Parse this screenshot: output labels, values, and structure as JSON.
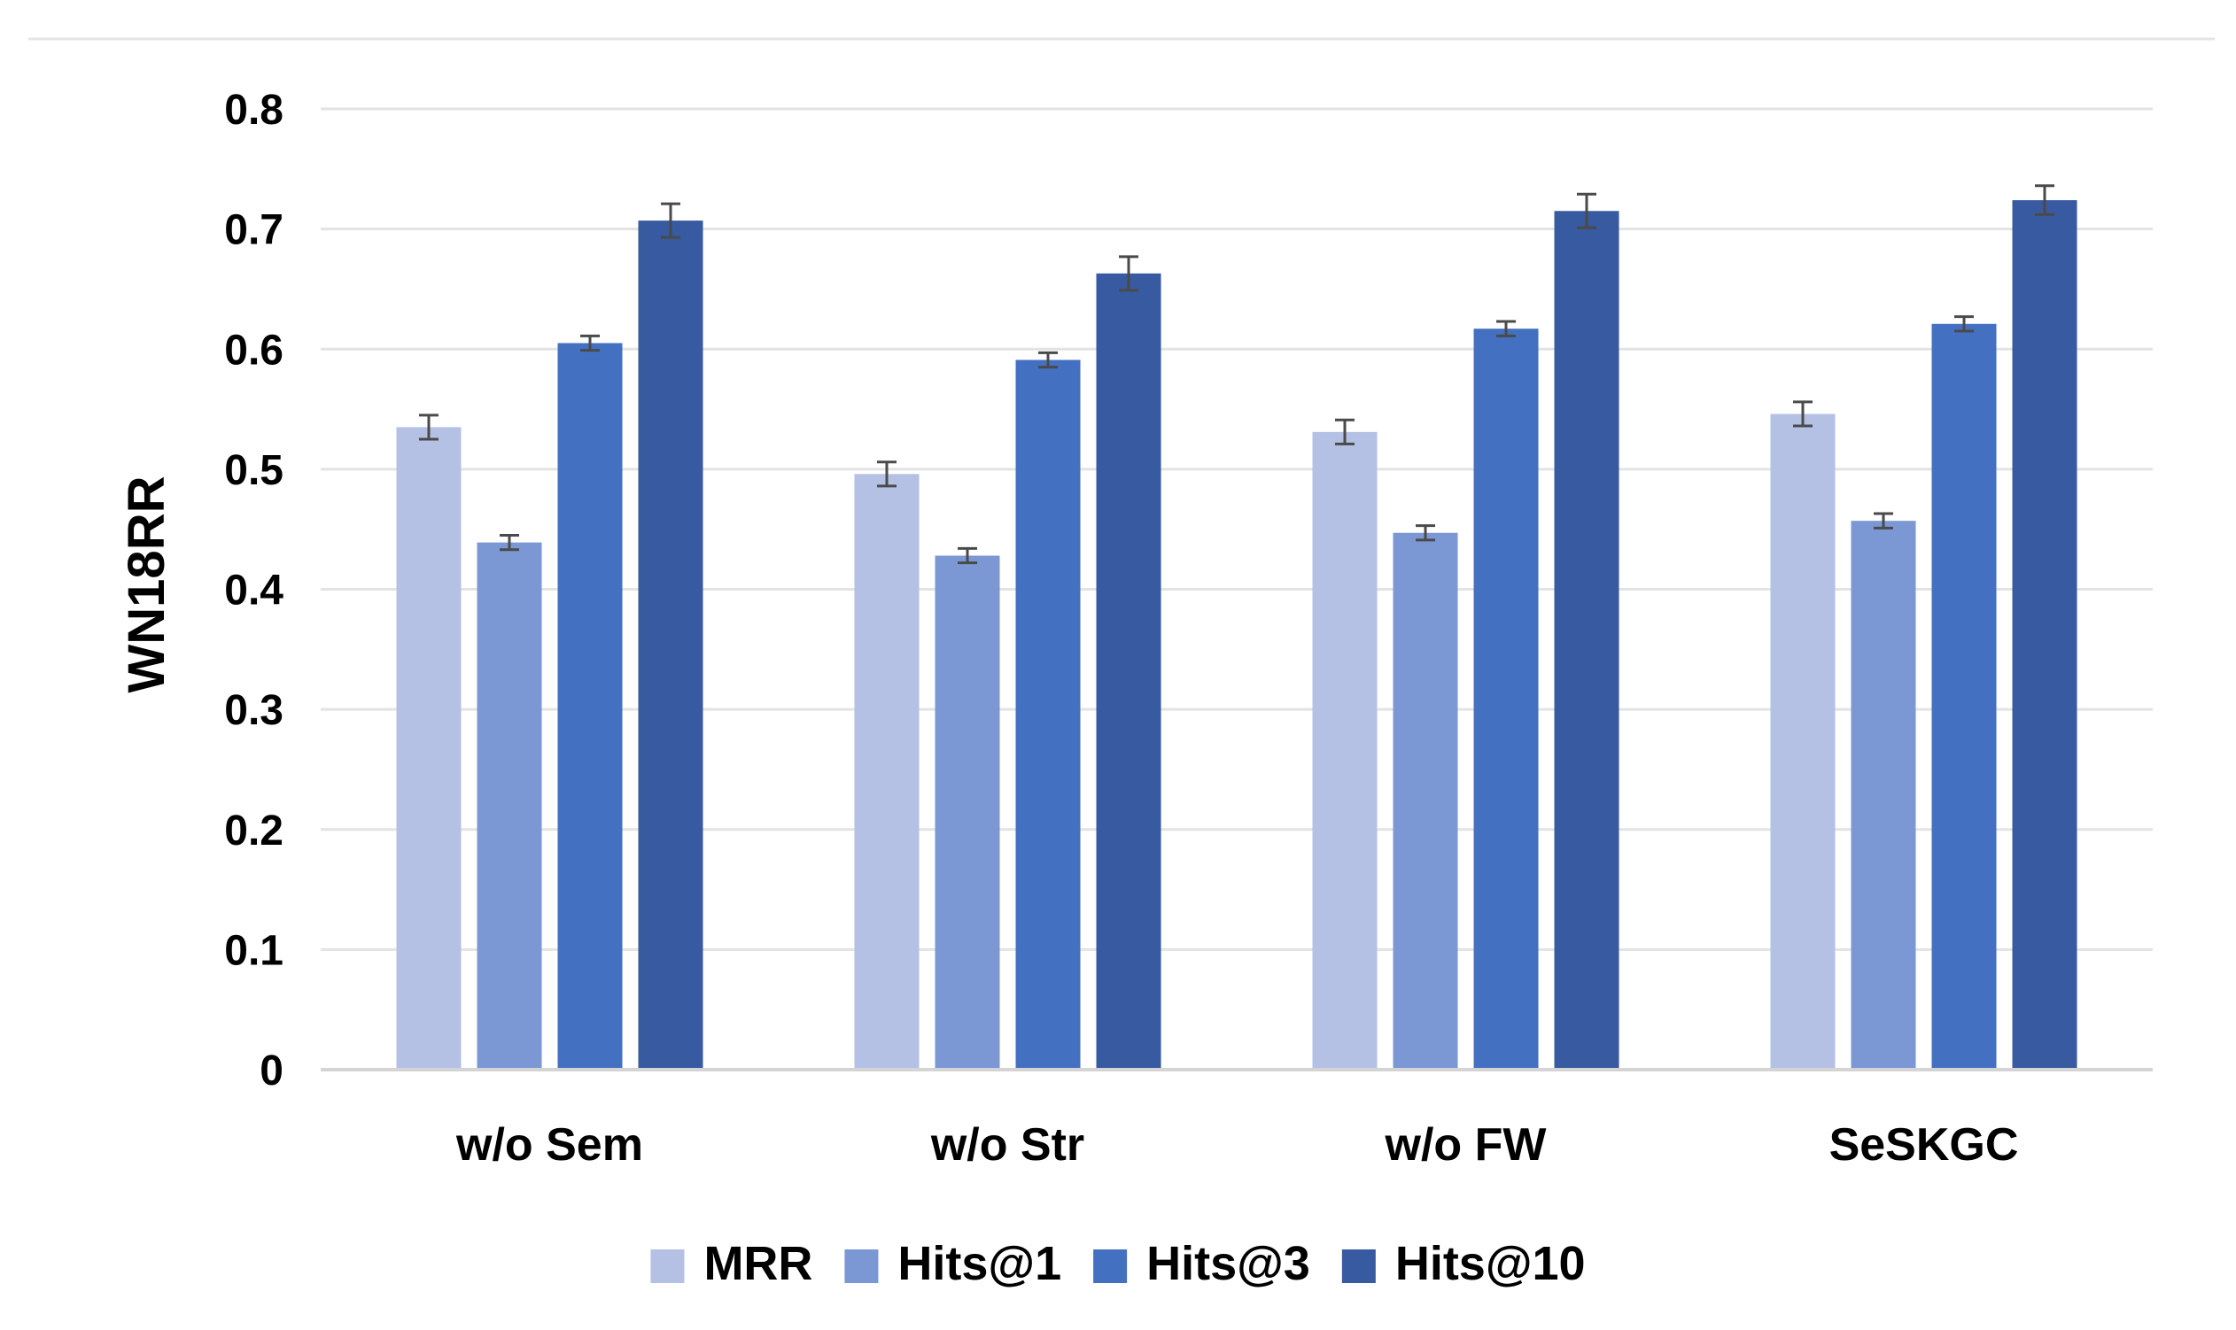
{
  "chart_data": {
    "type": "bar",
    "title": "",
    "xlabel": "",
    "ylabel": "WN18RR",
    "ylim": [
      0,
      0.8
    ],
    "yticks": [
      "0",
      "0.1",
      "0.2",
      "0.3",
      "0.4",
      "0.5",
      "0.6",
      "0.7",
      "0.8"
    ],
    "grid": true,
    "legend_position": "bottom",
    "error_bars": true,
    "categories": [
      "w/o Sem",
      "w/o Str",
      "w/o FW",
      "SeSKGC"
    ],
    "series": [
      {
        "name": "MRR",
        "color": "#B4C1E4",
        "values": [
          0.535,
          0.496,
          0.531,
          0.546
        ],
        "errors": [
          0.01,
          0.01,
          0.01,
          0.01
        ]
      },
      {
        "name": "Hits@1",
        "color": "#7B97D4",
        "values": [
          0.439,
          0.428,
          0.447,
          0.457
        ],
        "errors": [
          0.006,
          0.006,
          0.006,
          0.006
        ]
      },
      {
        "name": "Hits@3",
        "color": "#4470C2",
        "values": [
          0.605,
          0.591,
          0.617,
          0.621
        ],
        "errors": [
          0.006,
          0.006,
          0.006,
          0.006
        ]
      },
      {
        "name": "Hits@10",
        "color": "#375AA0",
        "values": [
          0.707,
          0.663,
          0.715,
          0.724
        ],
        "errors": [
          0.014,
          0.014,
          0.014,
          0.012
        ]
      }
    ]
  }
}
